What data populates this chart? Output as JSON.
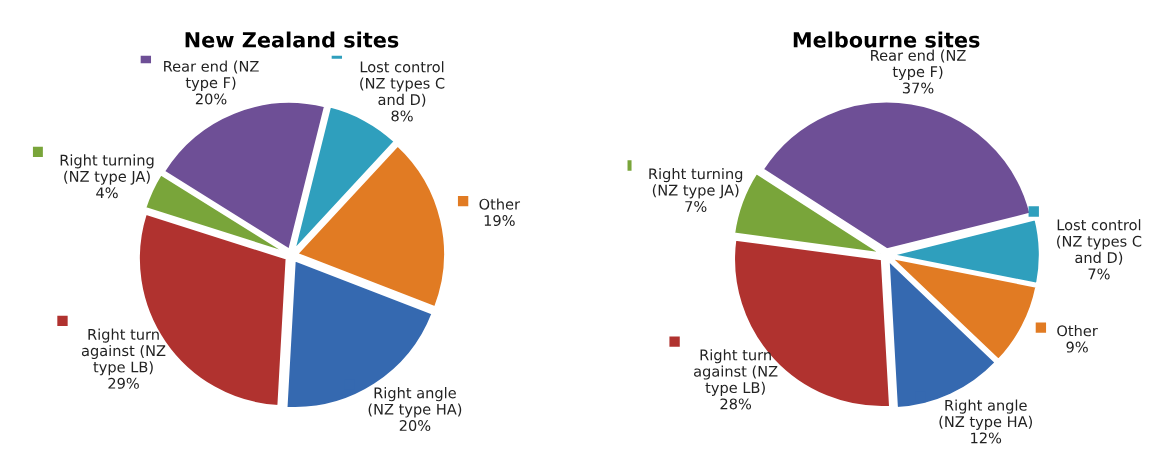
{
  "chart_data": [
    {
      "type": "pie",
      "title": "New Zealand sites",
      "categories": [
        "Lost control\n(NZ types C\nand D)",
        "Other",
        "Right angle\n(NZ type HA)",
        "Right turn\nagainst (NZ\ntype LB)",
        "Right turning\n(NZ type JA)",
        "Rear end (NZ\ntype F)"
      ],
      "values": [
        8,
        19,
        20,
        29,
        4,
        20
      ],
      "value_labels": [
        "8%",
        "19%",
        "20%",
        "29%",
        "4%",
        "20%"
      ],
      "colors": [
        "#2f9fbd",
        "#e17b23",
        "#3569b0",
        "#b0322f",
        "#79a53a",
        "#6e4f96"
      ]
    },
    {
      "type": "pie",
      "title": "Melbourne sites",
      "categories": [
        "Lost control\n(NZ types C\nand D)",
        "Other",
        "Right angle\n(NZ type HA)",
        "Right turn\nagainst (NZ\ntype LB)",
        "Right turning\n(NZ type JA)",
        "Rear end (NZ\ntype F)"
      ],
      "values": [
        7,
        9,
        12,
        28,
        7,
        37
      ],
      "value_labels": [
        "7%",
        "9%",
        "12%",
        "28%",
        "7%",
        "37%"
      ],
      "colors": [
        "#2f9fbd",
        "#e17b23",
        "#3569b0",
        "#b0322f",
        "#79a53a",
        "#6e4f96"
      ]
    }
  ]
}
